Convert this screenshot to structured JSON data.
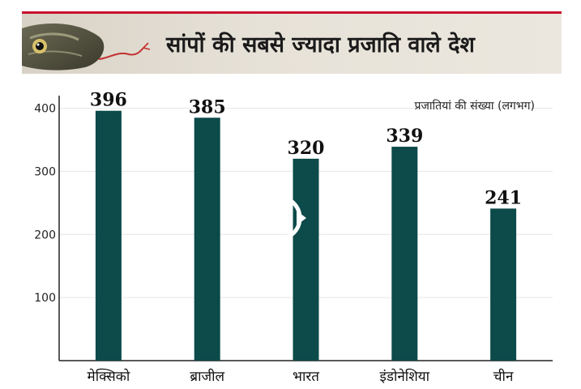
{
  "header": {
    "title": "सांपों की सबसे ज्यादा प्रजाति वाले देश",
    "image": "snake-head-illustration"
  },
  "overlay": {
    "icon": "play-icon"
  },
  "chart_data": {
    "type": "bar",
    "title": "सांपों की सबसे ज्यादा प्रजाति वाले देश",
    "legend_note": "प्रजातियां की संख्या (लगभग)",
    "categories": [
      "मेक्सिको",
      "ब्राजील",
      "भारत",
      "इंडोनेशिया",
      "चीन"
    ],
    "values": [
      396,
      385,
      320,
      339,
      241
    ],
    "value_labels": [
      "396",
      "385",
      "320",
      "339",
      "241"
    ],
    "yticks": [
      100,
      200,
      300,
      400
    ],
    "ylim": [
      0,
      420
    ],
    "grid": true,
    "xlabel": "",
    "ylabel": "",
    "colors": {
      "bar": "#0d4a4a",
      "accent": "#c8102e",
      "grid": "#e6e6e6",
      "axis": "#222222"
    }
  }
}
